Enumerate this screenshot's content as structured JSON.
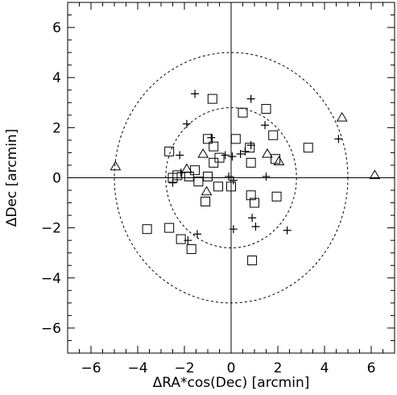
{
  "chart_data": {
    "type": "scatter",
    "title": "",
    "xlabel": "ΔRA*cos(Dec) [arcmin]",
    "ylabel": "ΔDec [arcmin]",
    "xlim": [
      -7,
      7
    ],
    "ylim": [
      -7,
      7
    ],
    "x_ticks": [
      -6,
      -4,
      -2,
      0,
      2,
      4,
      6
    ],
    "x_tick_labels": [
      "−6",
      "−4",
      "−2",
      "0",
      "2",
      "4",
      "6"
    ],
    "y_ticks": [
      -6,
      -4,
      -2,
      0,
      2,
      4,
      6
    ],
    "y_tick_labels": [
      "−6",
      "−4",
      "−2",
      "0",
      "2",
      "4",
      "6"
    ],
    "grid": false,
    "legend": null,
    "reference_lines": {
      "x": 0,
      "y": 0
    },
    "circles": [
      {
        "center": [
          0,
          0
        ],
        "radius": 2.8,
        "style": "dashed"
      },
      {
        "center": [
          0,
          0
        ],
        "radius": 5.0,
        "style": "dashed"
      }
    ],
    "series": [
      {
        "marker": "square",
        "values": [
          [
            -0.8,
            3.15
          ],
          [
            0.5,
            2.6
          ],
          [
            1.5,
            2.75
          ],
          [
            -1.0,
            1.55
          ],
          [
            -0.75,
            1.25
          ],
          [
            0.2,
            1.55
          ],
          [
            1.8,
            1.7
          ],
          [
            3.3,
            1.2
          ],
          [
            -2.65,
            1.05
          ],
          [
            0.8,
            1.2
          ],
          [
            -0.5,
            0.8
          ],
          [
            1.9,
            0.75
          ],
          [
            -0.75,
            0.6
          ],
          [
            0.85,
            0.6
          ],
          [
            -1.55,
            0.3
          ],
          [
            -2.3,
            0.1
          ],
          [
            -1.8,
            0.05
          ],
          [
            -2.5,
            0.0
          ],
          [
            -1.0,
            0.05
          ],
          [
            -0.55,
            -0.35
          ],
          [
            0.0,
            -0.35
          ],
          [
            -1.4,
            -0.15
          ],
          [
            0.85,
            -0.7
          ],
          [
            1.0,
            -1.0
          ],
          [
            1.95,
            -0.75
          ],
          [
            -1.1,
            -0.95
          ],
          [
            -3.6,
            -2.05
          ],
          [
            -2.65,
            -2.0
          ],
          [
            -2.15,
            -2.45
          ],
          [
            -1.7,
            -2.85
          ],
          [
            0.9,
            -3.3
          ]
        ]
      },
      {
        "marker": "triangle",
        "values": [
          [
            -4.95,
            0.45
          ],
          [
            4.75,
            2.4
          ],
          [
            6.15,
            0.1
          ],
          [
            -1.9,
            0.35
          ],
          [
            -1.2,
            0.95
          ],
          [
            1.55,
            0.95
          ],
          [
            2.05,
            0.65
          ],
          [
            -1.05,
            -0.55
          ]
        ]
      },
      {
        "marker": "plus",
        "values": [
          [
            -1.55,
            3.35
          ],
          [
            0.85,
            3.15
          ],
          [
            -1.9,
            2.15
          ],
          [
            1.45,
            2.1
          ],
          [
            -2.2,
            0.9
          ],
          [
            -2.15,
            0.2
          ],
          [
            -0.85,
            1.6
          ],
          [
            0.6,
            1.05
          ],
          [
            0.4,
            0.95
          ],
          [
            -0.25,
            0.9
          ],
          [
            0.05,
            0.85
          ],
          [
            -0.1,
            0.05
          ],
          [
            0.1,
            -0.1
          ],
          [
            -2.5,
            -0.2
          ],
          [
            1.5,
            0.05
          ],
          [
            0.85,
            1.3
          ],
          [
            0.9,
            -1.6
          ],
          [
            1.05,
            -1.95
          ],
          [
            2.4,
            -2.1
          ],
          [
            -1.45,
            -2.25
          ],
          [
            -1.85,
            -2.5
          ],
          [
            0.1,
            -2.05
          ],
          [
            4.6,
            1.55
          ]
        ]
      }
    ]
  }
}
